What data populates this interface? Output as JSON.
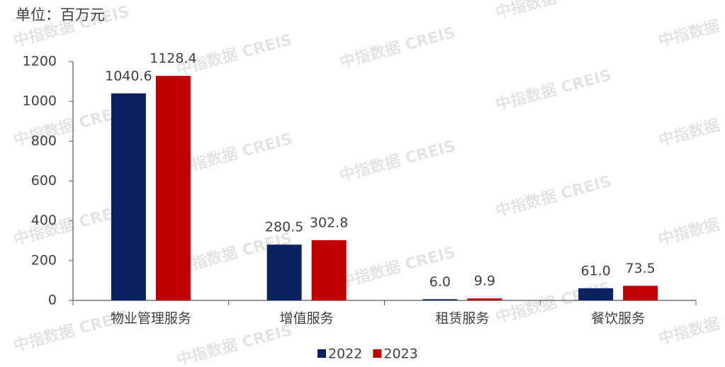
{
  "chart_data": {
    "type": "bar",
    "title": "单位：百万元",
    "watermark": "中指数据 CREIS",
    "categories": [
      "物业管理服务",
      "增值服务",
      "租赁服务",
      "餐饮服务"
    ],
    "series": [
      {
        "name": "2022",
        "color": "#0c2260",
        "values": [
          1040.6,
          280.5,
          6,
          61
        ],
        "value_labels": [
          "1040.6",
          "280.5",
          "6.0",
          "61.0"
        ]
      },
      {
        "name": "2023",
        "color": "#c00000",
        "values": [
          1128.4,
          302.8,
          9.9,
          73.5
        ]
      }
    ],
    "ylim": [
      0,
      1200
    ],
    "yticks": [
      0,
      200,
      400,
      600,
      800,
      1000,
      1200
    ],
    "legend": "bottom"
  }
}
